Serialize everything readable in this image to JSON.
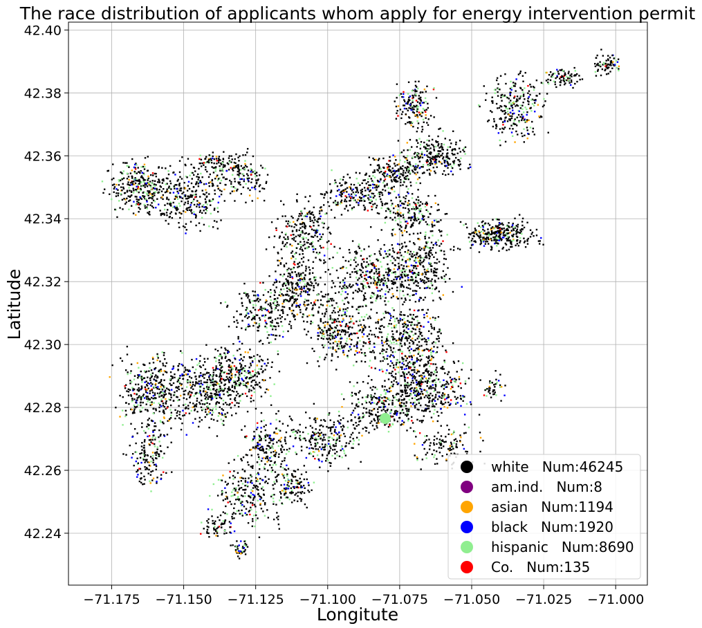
{
  "chart_data": {
    "type": "scatter",
    "title": "The race distribution of applicants whom apply for energy intervention permit",
    "xlabel": "Longitute",
    "ylabel": "Latitude",
    "xlim": [
      -71.19,
      -70.989
    ],
    "ylim": [
      42.2235,
      42.4025
    ],
    "x_ticks": [
      -71.175,
      -71.15,
      -71.125,
      -71.1,
      -71.075,
      -71.05,
      -71.025,
      -71.0
    ],
    "x_tick_labels": [
      "−71.175",
      "−71.150",
      "−71.125",
      "−71.100",
      "−71.075",
      "−71.050",
      "−71.025",
      "−71.000"
    ],
    "y_ticks": [
      42.24,
      42.26,
      42.28,
      42.3,
      42.32,
      42.34,
      42.36,
      42.38,
      42.4
    ],
    "y_tick_labels": [
      "42.24",
      "42.26",
      "42.28",
      "42.30",
      "42.32",
      "42.34",
      "42.36",
      "42.38",
      "42.40"
    ],
    "grid": true,
    "legend_position": "lower-right",
    "series": [
      {
        "key": "white",
        "label": "white   Num:46245",
        "color": "#000000"
      },
      {
        "key": "amind",
        "label": "am.ind.   Num:8",
        "color": "#800080"
      },
      {
        "key": "asian",
        "label": "asian   Num:1194",
        "color": "#FFA500"
      },
      {
        "key": "black",
        "label": "black   Num:1920",
        "color": "#0000FF"
      },
      {
        "key": "hispanic",
        "label": "hispanic   Num:8690",
        "color": "#90EE90"
      },
      {
        "key": "co",
        "label": "Co.   Num:135",
        "color": "#FF0000"
      }
    ],
    "point_clusters": [
      {
        "x": -71.165,
        "y": 42.35,
        "rx": 0.009,
        "ry": 0.007,
        "n": 330
      },
      {
        "x": -71.148,
        "y": 42.347,
        "rx": 0.01,
        "ry": 0.009,
        "n": 280
      },
      {
        "x": -71.13,
        "y": 42.354,
        "rx": 0.008,
        "ry": 0.006,
        "n": 160
      },
      {
        "x": -71.14,
        "y": 42.358,
        "rx": 0.006,
        "ry": 0.003,
        "n": 60
      },
      {
        "x": -71.09,
        "y": 42.348,
        "rx": 0.01,
        "ry": 0.005,
        "n": 200
      },
      {
        "x": -71.078,
        "y": 42.354,
        "rx": 0.008,
        "ry": 0.005,
        "n": 180
      },
      {
        "x": -71.072,
        "y": 42.342,
        "rx": 0.01,
        "ry": 0.006,
        "n": 200
      },
      {
        "x": -71.063,
        "y": 42.36,
        "rx": 0.01,
        "ry": 0.006,
        "n": 260
      },
      {
        "x": -71.07,
        "y": 42.376,
        "rx": 0.006,
        "ry": 0.006,
        "n": 160
      },
      {
        "x": -71.035,
        "y": 42.376,
        "rx": 0.008,
        "ry": 0.009,
        "n": 260
      },
      {
        "x": -71.018,
        "y": 42.385,
        "rx": 0.006,
        "ry": 0.003,
        "n": 80
      },
      {
        "x": -71.003,
        "y": 42.389,
        "rx": 0.004,
        "ry": 0.003,
        "n": 70
      },
      {
        "x": -71.04,
        "y": 42.335,
        "rx": 0.011,
        "ry": 0.004,
        "n": 320
      },
      {
        "x": -71.108,
        "y": 42.335,
        "rx": 0.009,
        "ry": 0.009,
        "n": 240
      },
      {
        "x": -71.11,
        "y": 42.318,
        "rx": 0.008,
        "ry": 0.009,
        "n": 260
      },
      {
        "x": -71.085,
        "y": 42.322,
        "rx": 0.012,
        "ry": 0.009,
        "n": 330
      },
      {
        "x": -71.068,
        "y": 42.325,
        "rx": 0.01,
        "ry": 0.01,
        "n": 330
      },
      {
        "x": -71.095,
        "y": 42.305,
        "rx": 0.01,
        "ry": 0.009,
        "n": 320
      },
      {
        "x": -71.072,
        "y": 42.3,
        "rx": 0.012,
        "ry": 0.011,
        "n": 420
      },
      {
        "x": -71.065,
        "y": 42.286,
        "rx": 0.012,
        "ry": 0.008,
        "n": 360
      },
      {
        "x": -71.08,
        "y": 42.28,
        "rx": 0.012,
        "ry": 0.007,
        "n": 300
      },
      {
        "x": -71.1,
        "y": 42.27,
        "rx": 0.01,
        "ry": 0.007,
        "n": 240
      },
      {
        "x": -71.122,
        "y": 42.31,
        "rx": 0.01,
        "ry": 0.008,
        "n": 220
      },
      {
        "x": -71.13,
        "y": 42.29,
        "rx": 0.01,
        "ry": 0.008,
        "n": 280
      },
      {
        "x": -71.16,
        "y": 42.285,
        "rx": 0.011,
        "ry": 0.01,
        "n": 380
      },
      {
        "x": -71.142,
        "y": 42.285,
        "rx": 0.011,
        "ry": 0.009,
        "n": 360
      },
      {
        "x": -71.162,
        "y": 42.265,
        "rx": 0.006,
        "ry": 0.009,
        "n": 150
      },
      {
        "x": -71.12,
        "y": 42.268,
        "rx": 0.008,
        "ry": 0.008,
        "n": 200
      },
      {
        "x": -71.128,
        "y": 42.252,
        "rx": 0.01,
        "ry": 0.009,
        "n": 220
      },
      {
        "x": -71.112,
        "y": 42.255,
        "rx": 0.006,
        "ry": 0.005,
        "n": 120
      },
      {
        "x": -71.138,
        "y": 42.242,
        "rx": 0.005,
        "ry": 0.003,
        "n": 60
      },
      {
        "x": -71.13,
        "y": 42.235,
        "rx": 0.003,
        "ry": 0.003,
        "n": 40
      },
      {
        "x": -71.042,
        "y": 42.287,
        "rx": 0.004,
        "ry": 0.004,
        "n": 40
      },
      {
        "x": -71.06,
        "y": 42.268,
        "rx": 0.01,
        "ry": 0.006,
        "n": 120
      }
    ]
  }
}
